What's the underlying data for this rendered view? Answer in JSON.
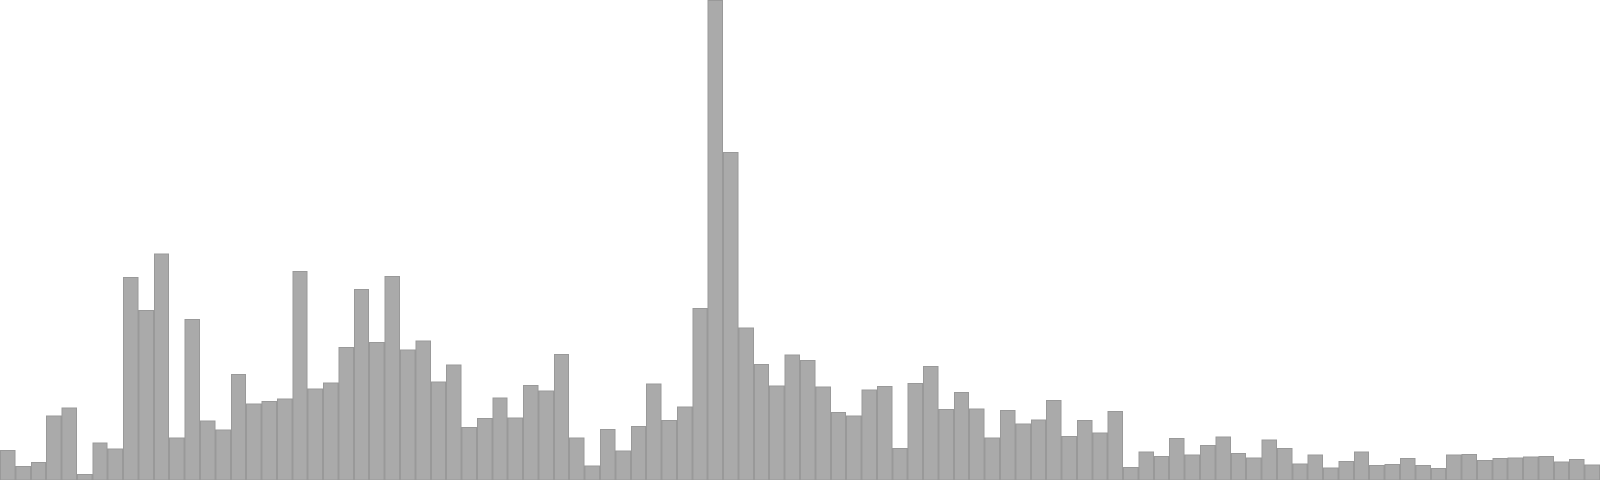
{
  "chart_data": {
    "type": "bar",
    "title": "",
    "xlabel": "",
    "ylabel": "",
    "grid": false,
    "legend": "none",
    "ylim": [
      0,
      1000
    ],
    "bar_color": "#aaaaaa",
    "bar_edge_color": "#999999",
    "background": "#ffffff",
    "values": [
      62,
      29,
      38,
      134,
      151,
      12,
      78,
      66,
      423,
      354,
      472,
      89,
      335,
      124,
      105,
      221,
      159,
      165,
      170,
      435,
      191,
      203,
      277,
      398,
      287,
      425,
      272,
      291,
      205,
      241,
      110,
      129,
      172,
      130,
      198,
      186,
      263,
      89,
      30,
      106,
      61,
      112,
      201,
      125,
      153,
      358,
      1000,
      683,
      318,
      242,
      197,
      261,
      250,
      195,
      142,
      134,
      189,
      196,
      67,
      202,
      237,
      148,
      183,
      149,
      89,
      146,
      118,
      126,
      167,
      92,
      125,
      99,
      144,
      27,
      59,
      50,
      88,
      53,
      73,
      91,
      56,
      47,
      84,
      67,
      34,
      53,
      26,
      40,
      59,
      31,
      33,
      46,
      31,
      25,
      53,
      54,
      42,
      46,
      47,
      49,
      50,
      39,
      44,
      32
    ]
  }
}
